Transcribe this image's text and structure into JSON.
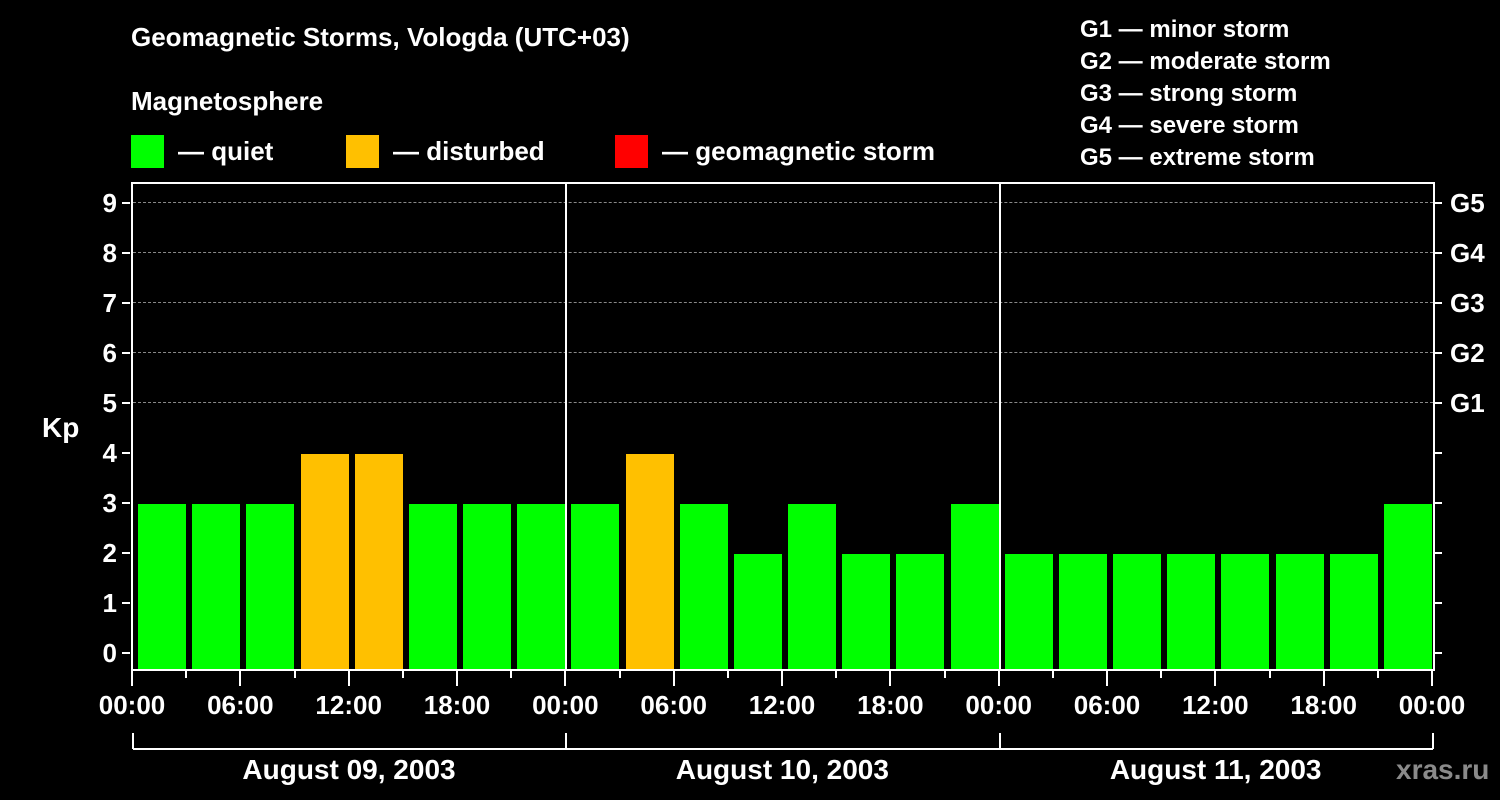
{
  "header": {
    "title": "Geomagnetic Storms, Vologda (UTC+03)",
    "subtitle": "Magnetosphere"
  },
  "legend": [
    {
      "label": "— quiet",
      "color": "#00ff00"
    },
    {
      "label": "— disturbed",
      "color": "#ffc000"
    },
    {
      "label": "— geomagnetic storm",
      "color": "#ff0000"
    }
  ],
  "g_scale": [
    "G1 — minor storm",
    "G2 — moderate storm",
    "G3 — strong storm",
    "G4 — severe storm",
    "G5 — extreme storm"
  ],
  "axes": {
    "ylabel": "Kp",
    "yticks": [
      "0",
      "1",
      "2",
      "3",
      "4",
      "5",
      "6",
      "7",
      "8",
      "9"
    ],
    "right_ticks": [
      {
        "kp": 5,
        "label": "G1"
      },
      {
        "kp": 6,
        "label": "G2"
      },
      {
        "kp": 7,
        "label": "G3"
      },
      {
        "kp": 8,
        "label": "G4"
      },
      {
        "kp": 9,
        "label": "G5"
      }
    ],
    "xticks": [
      "00:00",
      "06:00",
      "12:00",
      "18:00",
      "00:00",
      "06:00",
      "12:00",
      "18:00",
      "00:00",
      "06:00",
      "12:00",
      "18:00",
      "00:00"
    ],
    "dates": [
      "August 09, 2003",
      "August 10, 2003",
      "August 11, 2003"
    ]
  },
  "watermark": "xras.ru",
  "chart_data": {
    "type": "bar",
    "title": "Geomagnetic Storms, Vologda (UTC+03)",
    "xlabel": "",
    "ylabel": "Kp",
    "ylim": [
      0,
      9
    ],
    "grid": "dashed horizontal at Kp 5-9",
    "legend_position": "top",
    "categories": [
      "Aug 09 00-03",
      "Aug 09 03-06",
      "Aug 09 06-09",
      "Aug 09 09-12",
      "Aug 09 12-15",
      "Aug 09 15-18",
      "Aug 09 18-21",
      "Aug 09 21-24",
      "Aug 10 00-03",
      "Aug 10 03-06",
      "Aug 10 06-09",
      "Aug 10 09-12",
      "Aug 10 12-15",
      "Aug 10 15-18",
      "Aug 10 18-21",
      "Aug 10 21-24",
      "Aug 11 00-03",
      "Aug 11 03-06",
      "Aug 11 06-09",
      "Aug 11 09-12",
      "Aug 11 12-15",
      "Aug 11 15-18",
      "Aug 11 18-21",
      "Aug 11 21-24"
    ],
    "values": [
      3,
      3,
      3,
      4,
      4,
      3,
      3,
      3,
      3,
      4,
      3,
      2,
      3,
      2,
      2,
      3,
      2,
      2,
      2,
      2,
      2,
      2,
      2,
      3
    ],
    "status": [
      "quiet",
      "quiet",
      "quiet",
      "disturbed",
      "disturbed",
      "quiet",
      "quiet",
      "quiet",
      "quiet",
      "disturbed",
      "quiet",
      "quiet",
      "quiet",
      "quiet",
      "quiet",
      "quiet",
      "quiet",
      "quiet",
      "quiet",
      "quiet",
      "quiet",
      "quiet",
      "quiet",
      "quiet"
    ],
    "status_colors": {
      "quiet": "#00ff00",
      "disturbed": "#ffc000",
      "storm": "#ff0000"
    }
  }
}
